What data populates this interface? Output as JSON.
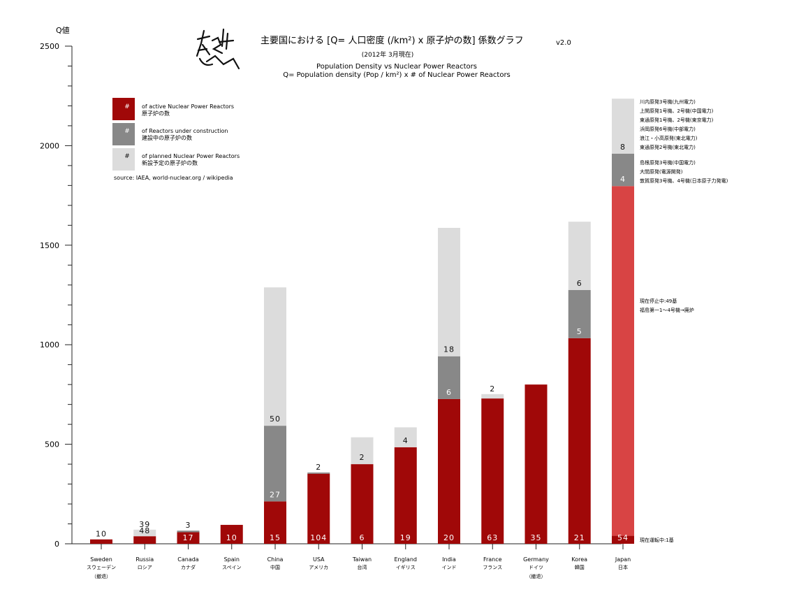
{
  "header": {
    "title": "主要国における [Q= 人口密度 (/km²) x 原子炉の数] 係数グラフ",
    "version": "v2.0",
    "date": "(2012年 3月現在)",
    "subtitle_en_1": "Population Density vs Nuclear Power Reactors",
    "subtitle_en_2": "Q= Population density (Pop / km²) x # of Nuclear Power Reactors"
  },
  "legend": {
    "items": [
      {
        "mark": "#",
        "en": "of active Nuclear Power Reactors",
        "ja": "原子炉の数",
        "color": "#a00808"
      },
      {
        "mark": "#",
        "en": "of Reactors under construction",
        "ja": "建設中の原子炉の数",
        "color": "#888888"
      },
      {
        "mark": "#",
        "en": "of planned Nuclear Power Reactors",
        "ja": "新設予定の原子炉の数",
        "color": "#dcdcdc"
      }
    ],
    "source": "source: IAEA, world-nuclear.org  / wikipedia"
  },
  "colors": {
    "active": "#a00808",
    "construction": "#888888",
    "planned": "#dcdcdc",
    "japan_highlight": "#d84444"
  },
  "chart_data": {
    "type": "bar",
    "stacked": true,
    "ylabel": "Q値",
    "ylim": [
      0,
      2500
    ],
    "yticks": [
      0,
      500,
      1000,
      1500,
      2000,
      2500
    ],
    "grid": false,
    "categories": [
      {
        "en": "Sweden",
        "ja": "スウェーデン",
        "note": "（撤退）"
      },
      {
        "en": "Russia",
        "ja": "ロシア",
        "note": ""
      },
      {
        "en": "Canada",
        "ja": "カナダ",
        "note": ""
      },
      {
        "en": "Spain",
        "ja": "スペイン",
        "note": ""
      },
      {
        "en": "China",
        "ja": "中国",
        "note": ""
      },
      {
        "en": "USA",
        "ja": "アメリカ",
        "note": ""
      },
      {
        "en": "Taiwan",
        "ja": "台湾",
        "note": ""
      },
      {
        "en": "England",
        "ja": "イギリス",
        "note": ""
      },
      {
        "en": "India",
        "ja": "インド",
        "note": ""
      },
      {
        "en": "France",
        "ja": "フランス",
        "note": ""
      },
      {
        "en": "Germany",
        "ja": "ドイツ",
        "note": "（撤退）"
      },
      {
        "en": "Korea",
        "ja": "韓国",
        "note": ""
      },
      {
        "en": "Japan",
        "ja": "日本",
        "note": ""
      }
    ],
    "series": [
      {
        "key": "active",
        "values": [
          22,
          38,
          58,
          95,
          213,
          352,
          400,
          485,
          727,
          730,
          800,
          1033,
          1797
        ]
      },
      {
        "key": "construction",
        "values": [
          0,
          0,
          8,
          0,
          380,
          6,
          0,
          0,
          215,
          0,
          0,
          242,
          163
        ]
      },
      {
        "key": "planned",
        "values": [
          0,
          33,
          0,
          0,
          695,
          0,
          135,
          100,
          645,
          22,
          0,
          343,
          276
        ]
      }
    ],
    "japan_running_value": 40,
    "bar_labels": {
      "active": [
        "10",
        "48",
        "17",
        "10",
        "15",
        "104",
        "6",
        "19",
        "20",
        "63",
        "35",
        "21",
        "54"
      ],
      "construction": [
        "",
        "",
        "3",
        "",
        "27",
        "2",
        "",
        "",
        "6",
        "",
        "",
        "5",
        "4"
      ],
      "planned": [
        "",
        "39",
        "",
        "",
        "50",
        "",
        "2",
        "4",
        "18",
        "2",
        "",
        "6",
        "8"
      ]
    }
  },
  "japan_notes": {
    "planned": [
      "川内原発3号機(九州電力)",
      "上関原発1号機、2号機(中国電力)",
      "東通原発1号機、2号機(東京電力)",
      "浜岡原発6号機(中部電力)",
      "浪江・小高原発(東北電力)",
      "東通原発2号機(東北電力)"
    ],
    "construction": [
      "島根原発3号機(中国電力)",
      "大間原発(電源開発)",
      "敦賀原発3号機、4号機(日本原子力発電)"
    ],
    "stopped": [
      "現在停止中:49基",
      "福島第一1〜4号機→廃炉"
    ],
    "running": "現在運転中:1基"
  }
}
